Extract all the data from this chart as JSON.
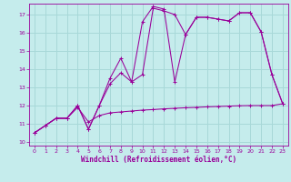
{
  "xlabel": "Windchill (Refroidissement éolien,°C)",
  "bg_color": "#c5ecec",
  "grid_color": "#a8d8d8",
  "line_color": "#990099",
  "xlim": [
    -0.5,
    23.5
  ],
  "ylim": [
    9.8,
    17.6
  ],
  "yticks": [
    10,
    11,
    12,
    13,
    14,
    15,
    16,
    17
  ],
  "xticks": [
    0,
    1,
    2,
    3,
    4,
    5,
    6,
    7,
    8,
    9,
    10,
    11,
    12,
    13,
    14,
    15,
    16,
    17,
    18,
    19,
    20,
    21,
    22,
    23
  ],
  "line1_x": [
    0,
    1,
    2,
    3,
    4,
    5,
    6,
    7,
    8,
    9,
    10,
    11,
    12,
    13,
    14,
    15,
    16,
    17,
    18,
    19,
    20,
    21,
    22,
    23
  ],
  "line1_y": [
    10.5,
    10.9,
    11.3,
    11.3,
    12.0,
    10.7,
    12.0,
    13.2,
    13.8,
    13.3,
    13.7,
    17.35,
    17.2,
    17.0,
    15.9,
    16.85,
    16.85,
    16.75,
    16.65,
    17.1,
    17.1,
    16.05,
    13.7,
    12.1
  ],
  "line2_x": [
    0,
    1,
    2,
    3,
    4,
    5,
    6,
    7,
    8,
    9,
    10,
    11,
    12,
    13,
    14,
    15,
    16,
    17,
    18,
    19,
    20,
    21,
    22,
    23
  ],
  "line2_y": [
    10.5,
    10.9,
    11.3,
    11.3,
    12.0,
    10.7,
    12.0,
    13.5,
    14.6,
    13.3,
    16.6,
    17.45,
    17.3,
    13.3,
    15.9,
    16.85,
    16.85,
    16.75,
    16.65,
    17.1,
    17.1,
    16.05,
    13.7,
    12.1
  ],
  "line3_x": [
    0,
    1,
    2,
    3,
    4,
    5,
    6,
    7,
    8,
    9,
    10,
    11,
    12,
    13,
    14,
    15,
    16,
    17,
    18,
    19,
    20,
    21,
    22,
    23
  ],
  "line3_y": [
    10.5,
    10.9,
    11.3,
    11.3,
    11.9,
    11.1,
    11.45,
    11.6,
    11.65,
    11.7,
    11.75,
    11.78,
    11.82,
    11.85,
    11.88,
    11.9,
    11.93,
    11.95,
    11.97,
    11.99,
    12.0,
    12.0,
    12.0,
    12.1
  ]
}
